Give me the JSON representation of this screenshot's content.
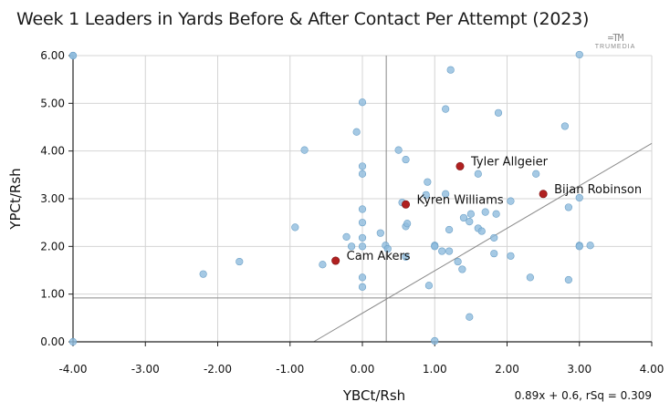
{
  "chart_data": {
    "type": "scatter",
    "title": "Week 1 Leaders in Yards Before & After Contact Per Attempt (2023)",
    "xlabel": "YBCt/Rsh",
    "ylabel": "YPCt/Rsh",
    "xlim": [
      -4,
      4
    ],
    "ylim": [
      0,
      6
    ],
    "x_ticks": [
      "-4.00",
      "-3.00",
      "-2.00",
      "-1.00",
      "0.00",
      "1.00",
      "2.00",
      "3.00",
      "4.00"
    ],
    "y_ticks": [
      "0.00",
      "1.00",
      "2.00",
      "3.00",
      "4.00",
      "5.00",
      "6.00"
    ],
    "grid": true,
    "reference_lines": {
      "x_mean": 0.33,
      "y_mean": 0.92
    },
    "trendline": {
      "slope": 0.89,
      "intercept": 0.6,
      "label": "0.89x + 0.6, rSq = 0.309"
    },
    "colors": {
      "point": "#8fbcdd",
      "point_edge": "#6a9fc6",
      "highlight": "#b02020",
      "grid": "#d4d4d4",
      "ref": "#8a8a8a"
    },
    "highlighted": [
      {
        "name": "Tyler Allgeier",
        "x": 1.35,
        "y": 3.68
      },
      {
        "name": "Bijan Robinson",
        "x": 2.5,
        "y": 3.1
      },
      {
        "name": "Kyren Williams",
        "x": 0.6,
        "y": 2.88
      },
      {
        "name": "Cam Akers",
        "x": -0.37,
        "y": 1.7
      }
    ],
    "points": [
      {
        "x": -4.0,
        "y": 6.0
      },
      {
        "x": -4.0,
        "y": 6.0
      },
      {
        "x": -4.0,
        "y": 0.0
      },
      {
        "x": -2.2,
        "y": 1.42
      },
      {
        "x": -1.7,
        "y": 1.68
      },
      {
        "x": -0.93,
        "y": 2.4
      },
      {
        "x": -0.8,
        "y": 4.02
      },
      {
        "x": -0.55,
        "y": 1.62
      },
      {
        "x": -0.22,
        "y": 2.2
      },
      {
        "x": -0.15,
        "y": 2.0
      },
      {
        "x": -0.08,
        "y": 4.4
      },
      {
        "x": 0.0,
        "y": 5.02
      },
      {
        "x": 0.0,
        "y": 3.68
      },
      {
        "x": 0.0,
        "y": 3.52
      },
      {
        "x": 0.0,
        "y": 2.78
      },
      {
        "x": 0.0,
        "y": 2.5
      },
      {
        "x": 0.0,
        "y": 2.18
      },
      {
        "x": 0.0,
        "y": 2.0
      },
      {
        "x": 0.0,
        "y": 1.35
      },
      {
        "x": 0.0,
        "y": 1.15
      },
      {
        "x": 0.25,
        "y": 2.28
      },
      {
        "x": 0.32,
        "y": 2.02
      },
      {
        "x": 0.35,
        "y": 1.95
      },
      {
        "x": 0.5,
        "y": 4.02
      },
      {
        "x": 0.55,
        "y": 2.92
      },
      {
        "x": 0.6,
        "y": 3.82
      },
      {
        "x": 0.6,
        "y": 2.42
      },
      {
        "x": 0.62,
        "y": 2.48
      },
      {
        "x": 0.6,
        "y": 1.78
      },
      {
        "x": 0.9,
        "y": 3.35
      },
      {
        "x": 0.88,
        "y": 3.08
      },
      {
        "x": 0.92,
        "y": 1.18
      },
      {
        "x": 1.0,
        "y": 2.02
      },
      {
        "x": 1.0,
        "y": 2.0
      },
      {
        "x": 1.0,
        "y": 0.02
      },
      {
        "x": 1.1,
        "y": 1.9
      },
      {
        "x": 1.15,
        "y": 4.88
      },
      {
        "x": 1.15,
        "y": 3.1
      },
      {
        "x": 1.2,
        "y": 2.35
      },
      {
        "x": 1.2,
        "y": 1.9
      },
      {
        "x": 1.22,
        "y": 5.7
      },
      {
        "x": 1.32,
        "y": 1.68
      },
      {
        "x": 1.38,
        "y": 1.52
      },
      {
        "x": 1.4,
        "y": 2.6
      },
      {
        "x": 1.48,
        "y": 2.52
      },
      {
        "x": 1.5,
        "y": 2.68
      },
      {
        "x": 1.48,
        "y": 0.52
      },
      {
        "x": 1.6,
        "y": 3.52
      },
      {
        "x": 1.6,
        "y": 2.38
      },
      {
        "x": 1.65,
        "y": 2.32
      },
      {
        "x": 1.7,
        "y": 2.72
      },
      {
        "x": 1.82,
        "y": 2.18
      },
      {
        "x": 1.85,
        "y": 2.68
      },
      {
        "x": 1.82,
        "y": 1.85
      },
      {
        "x": 1.88,
        "y": 4.8
      },
      {
        "x": 2.05,
        "y": 2.95
      },
      {
        "x": 2.05,
        "y": 1.8
      },
      {
        "x": 2.32,
        "y": 1.35
      },
      {
        "x": 2.4,
        "y": 3.52
      },
      {
        "x": 2.8,
        "y": 4.52
      },
      {
        "x": 2.85,
        "y": 2.82
      },
      {
        "x": 2.85,
        "y": 1.3
      },
      {
        "x": 3.0,
        "y": 6.02
      },
      {
        "x": 3.0,
        "y": 3.02
      },
      {
        "x": 3.0,
        "y": 2.02
      },
      {
        "x": 3.0,
        "y": 2.0
      },
      {
        "x": 3.15,
        "y": 2.02
      }
    ]
  },
  "brand": {
    "mark": "=TM",
    "name": "TRUMEDIA"
  }
}
